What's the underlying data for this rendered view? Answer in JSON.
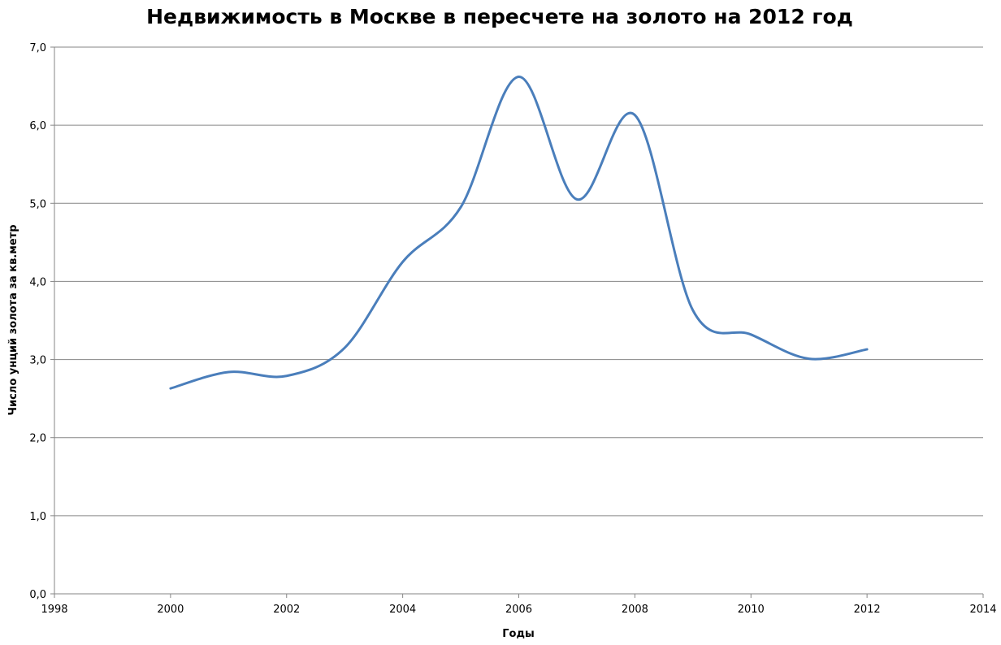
{
  "chart_data": {
    "type": "line",
    "title": "Недвижимость в Москве в пересчете на золото на 2012 год",
    "xlabel": "Годы",
    "ylabel": "Число унций золота за кв.метр",
    "xlim": [
      1998,
      2014
    ],
    "ylim": [
      0,
      7
    ],
    "x_ticks": [
      1998,
      2000,
      2002,
      2004,
      2006,
      2008,
      2010,
      2012,
      2014
    ],
    "x_tick_labels": [
      "1998",
      "2000",
      "2002",
      "2004",
      "2006",
      "2008",
      "2010",
      "2012",
      "2014"
    ],
    "y_ticks": [
      0,
      1,
      2,
      3,
      4,
      5,
      6,
      7
    ],
    "y_tick_labels": [
      "0,0",
      "1,0",
      "2,0",
      "3,0",
      "4,0",
      "5,0",
      "6,0",
      "7,0"
    ],
    "grid": "horizontal",
    "legend": "none",
    "smoothed": true,
    "series": [
      {
        "color": "#4a7ebb",
        "x": [
          2000,
          2001,
          2002,
          2003,
          2004,
          2005,
          2006,
          2007,
          2008,
          2009,
          2010,
          2011,
          2012
        ],
        "y": [
          2.63,
          2.84,
          2.79,
          3.15,
          4.25,
          4.95,
          6.62,
          5.05,
          6.13,
          3.63,
          3.32,
          3.01,
          3.13
        ]
      }
    ]
  }
}
